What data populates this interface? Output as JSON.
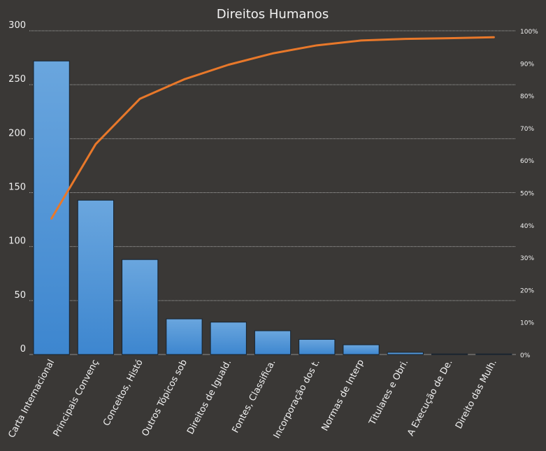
{
  "chart_data": {
    "type": "bar",
    "title": "Direitos Humanos",
    "categories": [
      "Carta Internacional",
      "Principais Convenç",
      "Conceitos, Histó",
      "Outros Tópicos sob",
      "Direitos de Iguald.",
      "Fontes, Classifica.",
      "Incorporação dos t.",
      "Normas de Interp",
      "Titulares e Obri.",
      "A Execução de De.",
      "Direito das Mulh."
    ],
    "series": [
      {
        "values": [
          272,
          143,
          88,
          33,
          30,
          22,
          14,
          9,
          2,
          0.5,
          0.5
        ]
      }
    ],
    "line_series": [
      {
        "values": [
          42,
          65,
          79,
          85,
          89.5,
          93,
          95.5,
          97,
          97.5,
          97.7,
          98
        ]
      }
    ],
    "y_left": {
      "min": 0,
      "max": 300,
      "ticks": [
        "0",
        "50",
        "100",
        "150",
        "200",
        "250",
        "300"
      ]
    },
    "y_right": {
      "min": 0,
      "max": 100,
      "ticks": [
        "0%",
        "10%",
        "20%",
        "30%",
        "40%",
        "50%",
        "60%",
        "70%",
        "80%",
        "90%",
        "100%"
      ]
    },
    "grid": true,
    "legend": "none",
    "colors": {
      "background": "#3a3836",
      "bar_top": "#6aa6de",
      "bar_bottom": "#3d86cf",
      "bar_stroke": "#15222e",
      "line": "#e8782a",
      "text": "#f2f2f2",
      "grid": "#c8c8c8"
    }
  }
}
